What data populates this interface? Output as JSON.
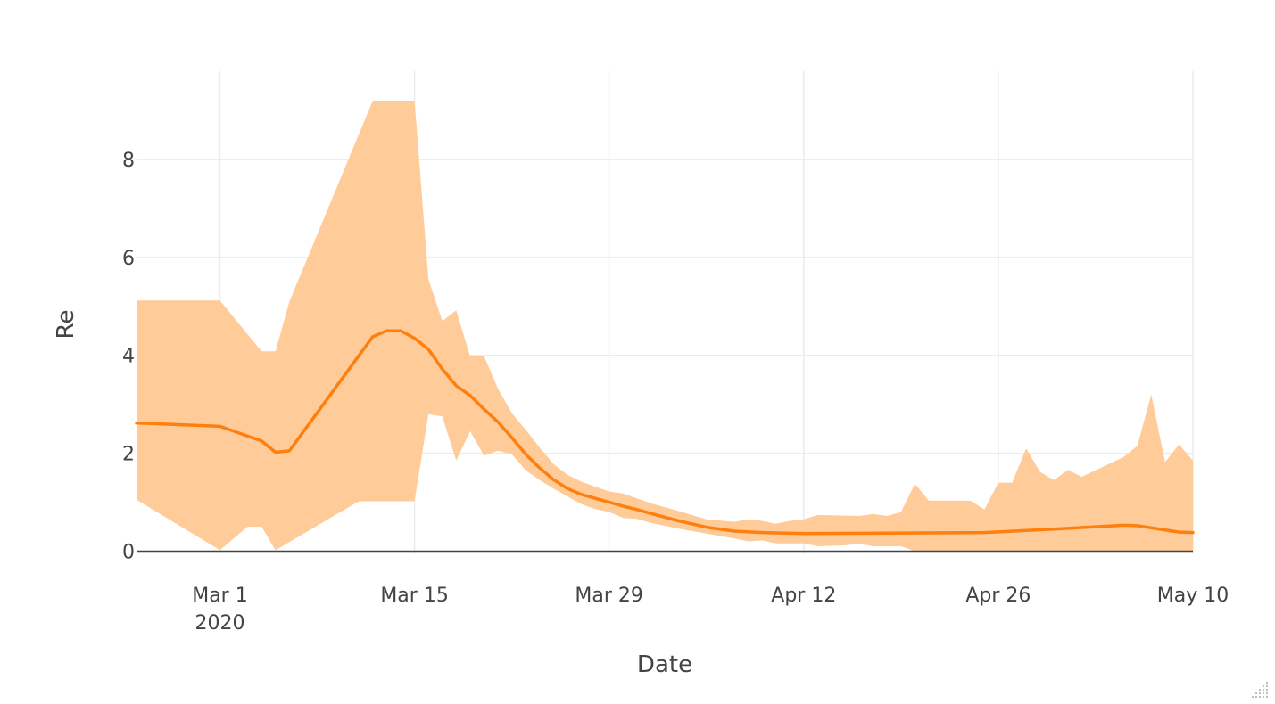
{
  "chart_data": {
    "type": "line",
    "title": "",
    "xlabel": "Date",
    "ylabel": "Re",
    "x_range": [
      "2020-02-24",
      "2020-05-10"
    ],
    "ylim": [
      -0.5,
      9.8
    ],
    "grid": true,
    "x_ticks": [
      {
        "date": "2020-03-01",
        "label": "Mar 1",
        "sublabel": "2020"
      },
      {
        "date": "2020-03-15",
        "label": "Mar 15",
        "sublabel": ""
      },
      {
        "date": "2020-03-29",
        "label": "Mar 29",
        "sublabel": ""
      },
      {
        "date": "2020-04-12",
        "label": "Apr 12",
        "sublabel": ""
      },
      {
        "date": "2020-04-26",
        "label": "Apr 26",
        "sublabel": ""
      },
      {
        "date": "2020-05-10",
        "label": "May 10",
        "sublabel": ""
      }
    ],
    "y_ticks": [
      {
        "value": 0,
        "label": "0"
      },
      {
        "value": 2,
        "label": "2"
      },
      {
        "value": 4,
        "label": "4"
      },
      {
        "value": 6,
        "label": "6"
      },
      {
        "value": 8,
        "label": "8"
      }
    ],
    "colors": {
      "line": "#ff7f0e",
      "band": "#ffcc99",
      "grid": "#ebebeb",
      "zeroline": "#444444"
    },
    "series": [
      {
        "x": [
          "2020-02-24",
          "2020-03-01",
          "2020-03-04",
          "2020-03-05",
          "2020-03-06",
          "2020-03-12",
          "2020-03-13",
          "2020-03-14",
          "2020-03-15",
          "2020-03-16",
          "2020-03-17",
          "2020-03-18",
          "2020-03-19",
          "2020-03-20",
          "2020-03-21",
          "2020-03-22",
          "2020-03-23",
          "2020-03-24",
          "2020-03-25",
          "2020-03-26",
          "2020-03-27",
          "2020-03-28",
          "2020-03-29",
          "2020-03-30",
          "2020-03-31",
          "2020-04-01",
          "2020-04-03",
          "2020-04-05",
          "2020-04-07",
          "2020-04-09",
          "2020-04-12",
          "2020-04-18",
          "2020-04-25",
          "2020-04-30",
          "2020-05-05",
          "2020-05-06",
          "2020-05-09",
          "2020-05-10"
        ],
        "y": [
          2.62,
          2.55,
          2.25,
          2.02,
          2.05,
          4.38,
          4.5,
          4.5,
          4.35,
          4.12,
          3.72,
          3.38,
          3.18,
          2.9,
          2.64,
          2.32,
          1.98,
          1.7,
          1.46,
          1.28,
          1.16,
          1.08,
          1.0,
          0.92,
          0.85,
          0.77,
          0.62,
          0.49,
          0.41,
          0.38,
          0.36,
          0.37,
          0.38,
          0.45,
          0.53,
          0.52,
          0.39,
          0.38
        ]
      }
    ],
    "band": {
      "upper": [
        {
          "x": "2020-02-24",
          "y": 5.12
        },
        {
          "x": "2020-03-01",
          "y": 5.12
        },
        {
          "x": "2020-03-04",
          "y": 4.08
        },
        {
          "x": "2020-03-05",
          "y": 4.08
        },
        {
          "x": "2020-03-06",
          "y": 5.1
        },
        {
          "x": "2020-03-12",
          "y": 9.2
        },
        {
          "x": "2020-03-15",
          "y": 9.2
        },
        {
          "x": "2020-03-16",
          "y": 5.55
        },
        {
          "x": "2020-03-17",
          "y": 4.7
        },
        {
          "x": "2020-03-18",
          "y": 4.92
        },
        {
          "x": "2020-03-19",
          "y": 3.98
        },
        {
          "x": "2020-03-20",
          "y": 3.98
        },
        {
          "x": "2020-03-21",
          "y": 3.32
        },
        {
          "x": "2020-03-22",
          "y": 2.82
        },
        {
          "x": "2020-03-23",
          "y": 2.48
        },
        {
          "x": "2020-03-24",
          "y": 2.12
        },
        {
          "x": "2020-03-25",
          "y": 1.78
        },
        {
          "x": "2020-03-26",
          "y": 1.56
        },
        {
          "x": "2020-03-27",
          "y": 1.42
        },
        {
          "x": "2020-03-28",
          "y": 1.32
        },
        {
          "x": "2020-03-29",
          "y": 1.22
        },
        {
          "x": "2020-03-30",
          "y": 1.18
        },
        {
          "x": "2020-03-31",
          "y": 1.08
        },
        {
          "x": "2020-04-01",
          "y": 0.98
        },
        {
          "x": "2020-04-03",
          "y": 0.82
        },
        {
          "x": "2020-04-05",
          "y": 0.65
        },
        {
          "x": "2020-04-07",
          "y": 0.6
        },
        {
          "x": "2020-04-08",
          "y": 0.65
        },
        {
          "x": "2020-04-09",
          "y": 0.62
        },
        {
          "x": "2020-04-10",
          "y": 0.56
        },
        {
          "x": "2020-04-11",
          "y": 0.62
        },
        {
          "x": "2020-04-12",
          "y": 0.65
        },
        {
          "x": "2020-04-13",
          "y": 0.74
        },
        {
          "x": "2020-04-16",
          "y": 0.72
        },
        {
          "x": "2020-04-17",
          "y": 0.76
        },
        {
          "x": "2020-04-18",
          "y": 0.72
        },
        {
          "x": "2020-04-19",
          "y": 0.8
        },
        {
          "x": "2020-04-20",
          "y": 1.38
        },
        {
          "x": "2020-04-21",
          "y": 1.03
        },
        {
          "x": "2020-04-24",
          "y": 1.03
        },
        {
          "x": "2020-04-25",
          "y": 0.85
        },
        {
          "x": "2020-04-26",
          "y": 1.4
        },
        {
          "x": "2020-04-27",
          "y": 1.4
        },
        {
          "x": "2020-04-28",
          "y": 2.1
        },
        {
          "x": "2020-04-29",
          "y": 1.62
        },
        {
          "x": "2020-04-30",
          "y": 1.45
        },
        {
          "x": "2020-05-01",
          "y": 1.66
        },
        {
          "x": "2020-05-02",
          "y": 1.52
        },
        {
          "x": "2020-05-05",
          "y": 1.92
        },
        {
          "x": "2020-05-06",
          "y": 2.15
        },
        {
          "x": "2020-05-07",
          "y": 3.2
        },
        {
          "x": "2020-05-08",
          "y": 1.82
        },
        {
          "x": "2020-05-09",
          "y": 2.18
        },
        {
          "x": "2020-05-10",
          "y": 1.85
        }
      ],
      "lower": [
        {
          "x": "2020-02-24",
          "y": 1.05
        },
        {
          "x": "2020-03-01",
          "y": 0.02
        },
        {
          "x": "2020-03-03",
          "y": 0.5
        },
        {
          "x": "2020-03-04",
          "y": 0.5
        },
        {
          "x": "2020-03-05",
          "y": 0.02
        },
        {
          "x": "2020-03-11",
          "y": 1.02
        },
        {
          "x": "2020-03-15",
          "y": 1.02
        },
        {
          "x": "2020-03-16",
          "y": 2.8
        },
        {
          "x": "2020-03-17",
          "y": 2.75
        },
        {
          "x": "2020-03-18",
          "y": 1.85
        },
        {
          "x": "2020-03-19",
          "y": 2.45
        },
        {
          "x": "2020-03-20",
          "y": 1.95
        },
        {
          "x": "2020-03-21",
          "y": 2.05
        },
        {
          "x": "2020-03-22",
          "y": 1.98
        },
        {
          "x": "2020-03-23",
          "y": 1.65
        },
        {
          "x": "2020-03-24",
          "y": 1.45
        },
        {
          "x": "2020-03-25",
          "y": 1.28
        },
        {
          "x": "2020-03-26",
          "y": 1.12
        },
        {
          "x": "2020-03-27",
          "y": 0.96
        },
        {
          "x": "2020-03-28",
          "y": 0.86
        },
        {
          "x": "2020-03-29",
          "y": 0.8
        },
        {
          "x": "2020-03-30",
          "y": 0.68
        },
        {
          "x": "2020-03-31",
          "y": 0.66
        },
        {
          "x": "2020-04-01",
          "y": 0.58
        },
        {
          "x": "2020-04-03",
          "y": 0.46
        },
        {
          "x": "2020-04-05",
          "y": 0.36
        },
        {
          "x": "2020-04-07",
          "y": 0.26
        },
        {
          "x": "2020-04-08",
          "y": 0.2
        },
        {
          "x": "2020-04-09",
          "y": 0.22
        },
        {
          "x": "2020-04-10",
          "y": 0.16
        },
        {
          "x": "2020-04-12",
          "y": 0.16
        },
        {
          "x": "2020-04-13",
          "y": 0.1
        },
        {
          "x": "2020-04-15",
          "y": 0.12
        },
        {
          "x": "2020-04-16",
          "y": 0.15
        },
        {
          "x": "2020-04-17",
          "y": 0.1
        },
        {
          "x": "2020-04-19",
          "y": 0.1
        },
        {
          "x": "2020-04-20",
          "y": 0.0
        },
        {
          "x": "2020-05-10",
          "y": 0.0
        }
      ]
    }
  }
}
